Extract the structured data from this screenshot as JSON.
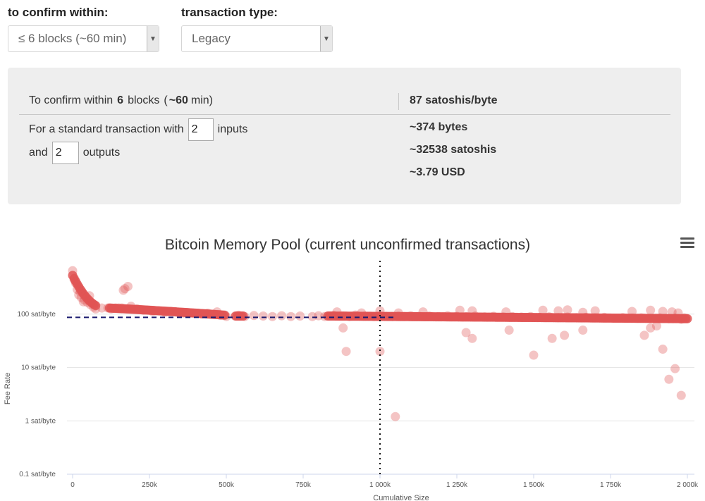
{
  "controls": {
    "confirm_label": "to confirm within:",
    "confirm_value": "≤ 6 blocks (~60 min)",
    "type_label": "transaction type:",
    "type_value": "Legacy"
  },
  "summary": {
    "confirm_prefix": "To confirm within",
    "blocks": "6",
    "blocks_word": "blocks",
    "open_paren": "(",
    "minutes": "~60",
    "minutes_suffix": "min)",
    "fee_rate": "87 satoshis/byte",
    "tx_prefix": "For a standard transaction with",
    "inputs": "2",
    "inputs_label": "inputs",
    "and_label": "and",
    "outputs": "2",
    "outputs_label": "outputs",
    "bytes": "~374 bytes",
    "satoshis": "~32538 satoshis",
    "usd": "~3.79 USD"
  },
  "chart_data": {
    "type": "scatter",
    "title": "Bitcoin Memory Pool (current unconfirmed transactions)",
    "xlabel": "Cumulative Size",
    "ylabel": "Fee Rate",
    "y_scale": "log",
    "xlim": [
      0,
      2000000
    ],
    "ylim": [
      0.1,
      1000
    ],
    "x_ticks": [
      {
        "v": 0,
        "label": "0"
      },
      {
        "v": 250000,
        "label": "250k"
      },
      {
        "v": 500000,
        "label": "500k"
      },
      {
        "v": 750000,
        "label": "750k"
      },
      {
        "v": 1000000,
        "label": "1 000k"
      },
      {
        "v": 1250000,
        "label": "1 250k"
      },
      {
        "v": 1500000,
        "label": "1 500k"
      },
      {
        "v": 1750000,
        "label": "1 750k"
      },
      {
        "v": 2000000,
        "label": "2 000k"
      }
    ],
    "y_ticks": [
      {
        "v": 0.1,
        "label": "0.1 sat/byte"
      },
      {
        "v": 1,
        "label": "1 sat/byte"
      },
      {
        "v": 10,
        "label": "10 sat/byte"
      },
      {
        "v": 100,
        "label": "100 sat/byte"
      }
    ],
    "grid": true,
    "reference_lines": {
      "fee_rate": 87,
      "cumulative_size": 1000000
    },
    "color": "#e05555",
    "points": [
      [
        0,
        650
      ],
      [
        5000,
        440
      ],
      [
        10000,
        380
      ],
      [
        15000,
        290
      ],
      [
        20000,
        230
      ],
      [
        28000,
        205
      ],
      [
        38000,
        185
      ],
      [
        48000,
        165
      ],
      [
        58000,
        150
      ],
      [
        68000,
        135
      ],
      [
        25000,
        260
      ],
      [
        55000,
        220
      ],
      [
        35000,
        170
      ],
      [
        75000,
        125
      ],
      [
        95000,
        130
      ],
      [
        115000,
        130
      ],
      [
        125000,
        125
      ],
      [
        140000,
        130
      ],
      [
        150000,
        130
      ],
      [
        160000,
        130
      ],
      [
        165000,
        280
      ],
      [
        170000,
        300
      ],
      [
        180000,
        330
      ],
      [
        190000,
        140
      ],
      [
        210000,
        125
      ],
      [
        230000,
        118
      ],
      [
        260000,
        112
      ],
      [
        280000,
        115
      ],
      [
        300000,
        108
      ],
      [
        320000,
        112
      ],
      [
        340000,
        108
      ],
      [
        360000,
        104
      ],
      [
        380000,
        106
      ],
      [
        400000,
        104
      ],
      [
        420000,
        100
      ],
      [
        440000,
        104
      ],
      [
        460000,
        98
      ],
      [
        480000,
        95
      ],
      [
        500000,
        90
      ],
      [
        470000,
        110
      ],
      [
        540000,
        95
      ],
      [
        560000,
        90
      ],
      [
        590000,
        94
      ],
      [
        620000,
        92
      ],
      [
        650000,
        90
      ],
      [
        680000,
        93
      ],
      [
        710000,
        90
      ],
      [
        740000,
        92
      ],
      [
        780000,
        90
      ],
      [
        800000,
        93
      ],
      [
        820000,
        90
      ],
      [
        850000,
        94
      ],
      [
        880000,
        92
      ],
      [
        900000,
        90
      ],
      [
        920000,
        96
      ],
      [
        950000,
        92
      ],
      [
        980000,
        90
      ],
      [
        1000000,
        92
      ],
      [
        1020000,
        91
      ],
      [
        1040000,
        90
      ],
      [
        1060000,
        92
      ],
      [
        1080000,
        90
      ],
      [
        1100000,
        93
      ],
      [
        1130000,
        90
      ],
      [
        1160000,
        92
      ],
      [
        1190000,
        90
      ],
      [
        1220000,
        93
      ],
      [
        1250000,
        91
      ],
      [
        1280000,
        90
      ],
      [
        1310000,
        92
      ],
      [
        1340000,
        89
      ],
      [
        1370000,
        91
      ],
      [
        1400000,
        88
      ],
      [
        1430000,
        90
      ],
      [
        1460000,
        88
      ],
      [
        1490000,
        90
      ],
      [
        1520000,
        87
      ],
      [
        1550000,
        89
      ],
      [
        1580000,
        86
      ],
      [
        1610000,
        88
      ],
      [
        1640000,
        86
      ],
      [
        1670000,
        87
      ],
      [
        1700000,
        85
      ],
      [
        1730000,
        87
      ],
      [
        1760000,
        84
      ],
      [
        1790000,
        86
      ],
      [
        1820000,
        84
      ],
      [
        1850000,
        85
      ],
      [
        1880000,
        83
      ],
      [
        1910000,
        85
      ],
      [
        1940000,
        82
      ],
      [
        1960000,
        84
      ],
      [
        1980000,
        80
      ],
      [
        1990000,
        85
      ],
      [
        860000,
        110
      ],
      [
        940000,
        105
      ],
      [
        1000000,
        115
      ],
      [
        1060000,
        105
      ],
      [
        1140000,
        110
      ],
      [
        1260000,
        118
      ],
      [
        1300000,
        115
      ],
      [
        1410000,
        110
      ],
      [
        1530000,
        118
      ],
      [
        1580000,
        115
      ],
      [
        1610000,
        120
      ],
      [
        1660000,
        108
      ],
      [
        1700000,
        115
      ],
      [
        1820000,
        112
      ],
      [
        1880000,
        118
      ],
      [
        1920000,
        112
      ],
      [
        1950000,
        110
      ],
      [
        1970000,
        105
      ],
      [
        880000,
        55
      ],
      [
        890000,
        20
      ],
      [
        1000000,
        20
      ],
      [
        1050000,
        1.2
      ],
      [
        1280000,
        45
      ],
      [
        1300000,
        35
      ],
      [
        1420000,
        50
      ],
      [
        1500000,
        17
      ],
      [
        1560000,
        35
      ],
      [
        1600000,
        40
      ],
      [
        1660000,
        50
      ],
      [
        1860000,
        40
      ],
      [
        1880000,
        55
      ],
      [
        1900000,
        60
      ],
      [
        1920000,
        22
      ],
      [
        1940000,
        6
      ],
      [
        1960000,
        9.5
      ],
      [
        1980000,
        3
      ]
    ]
  }
}
